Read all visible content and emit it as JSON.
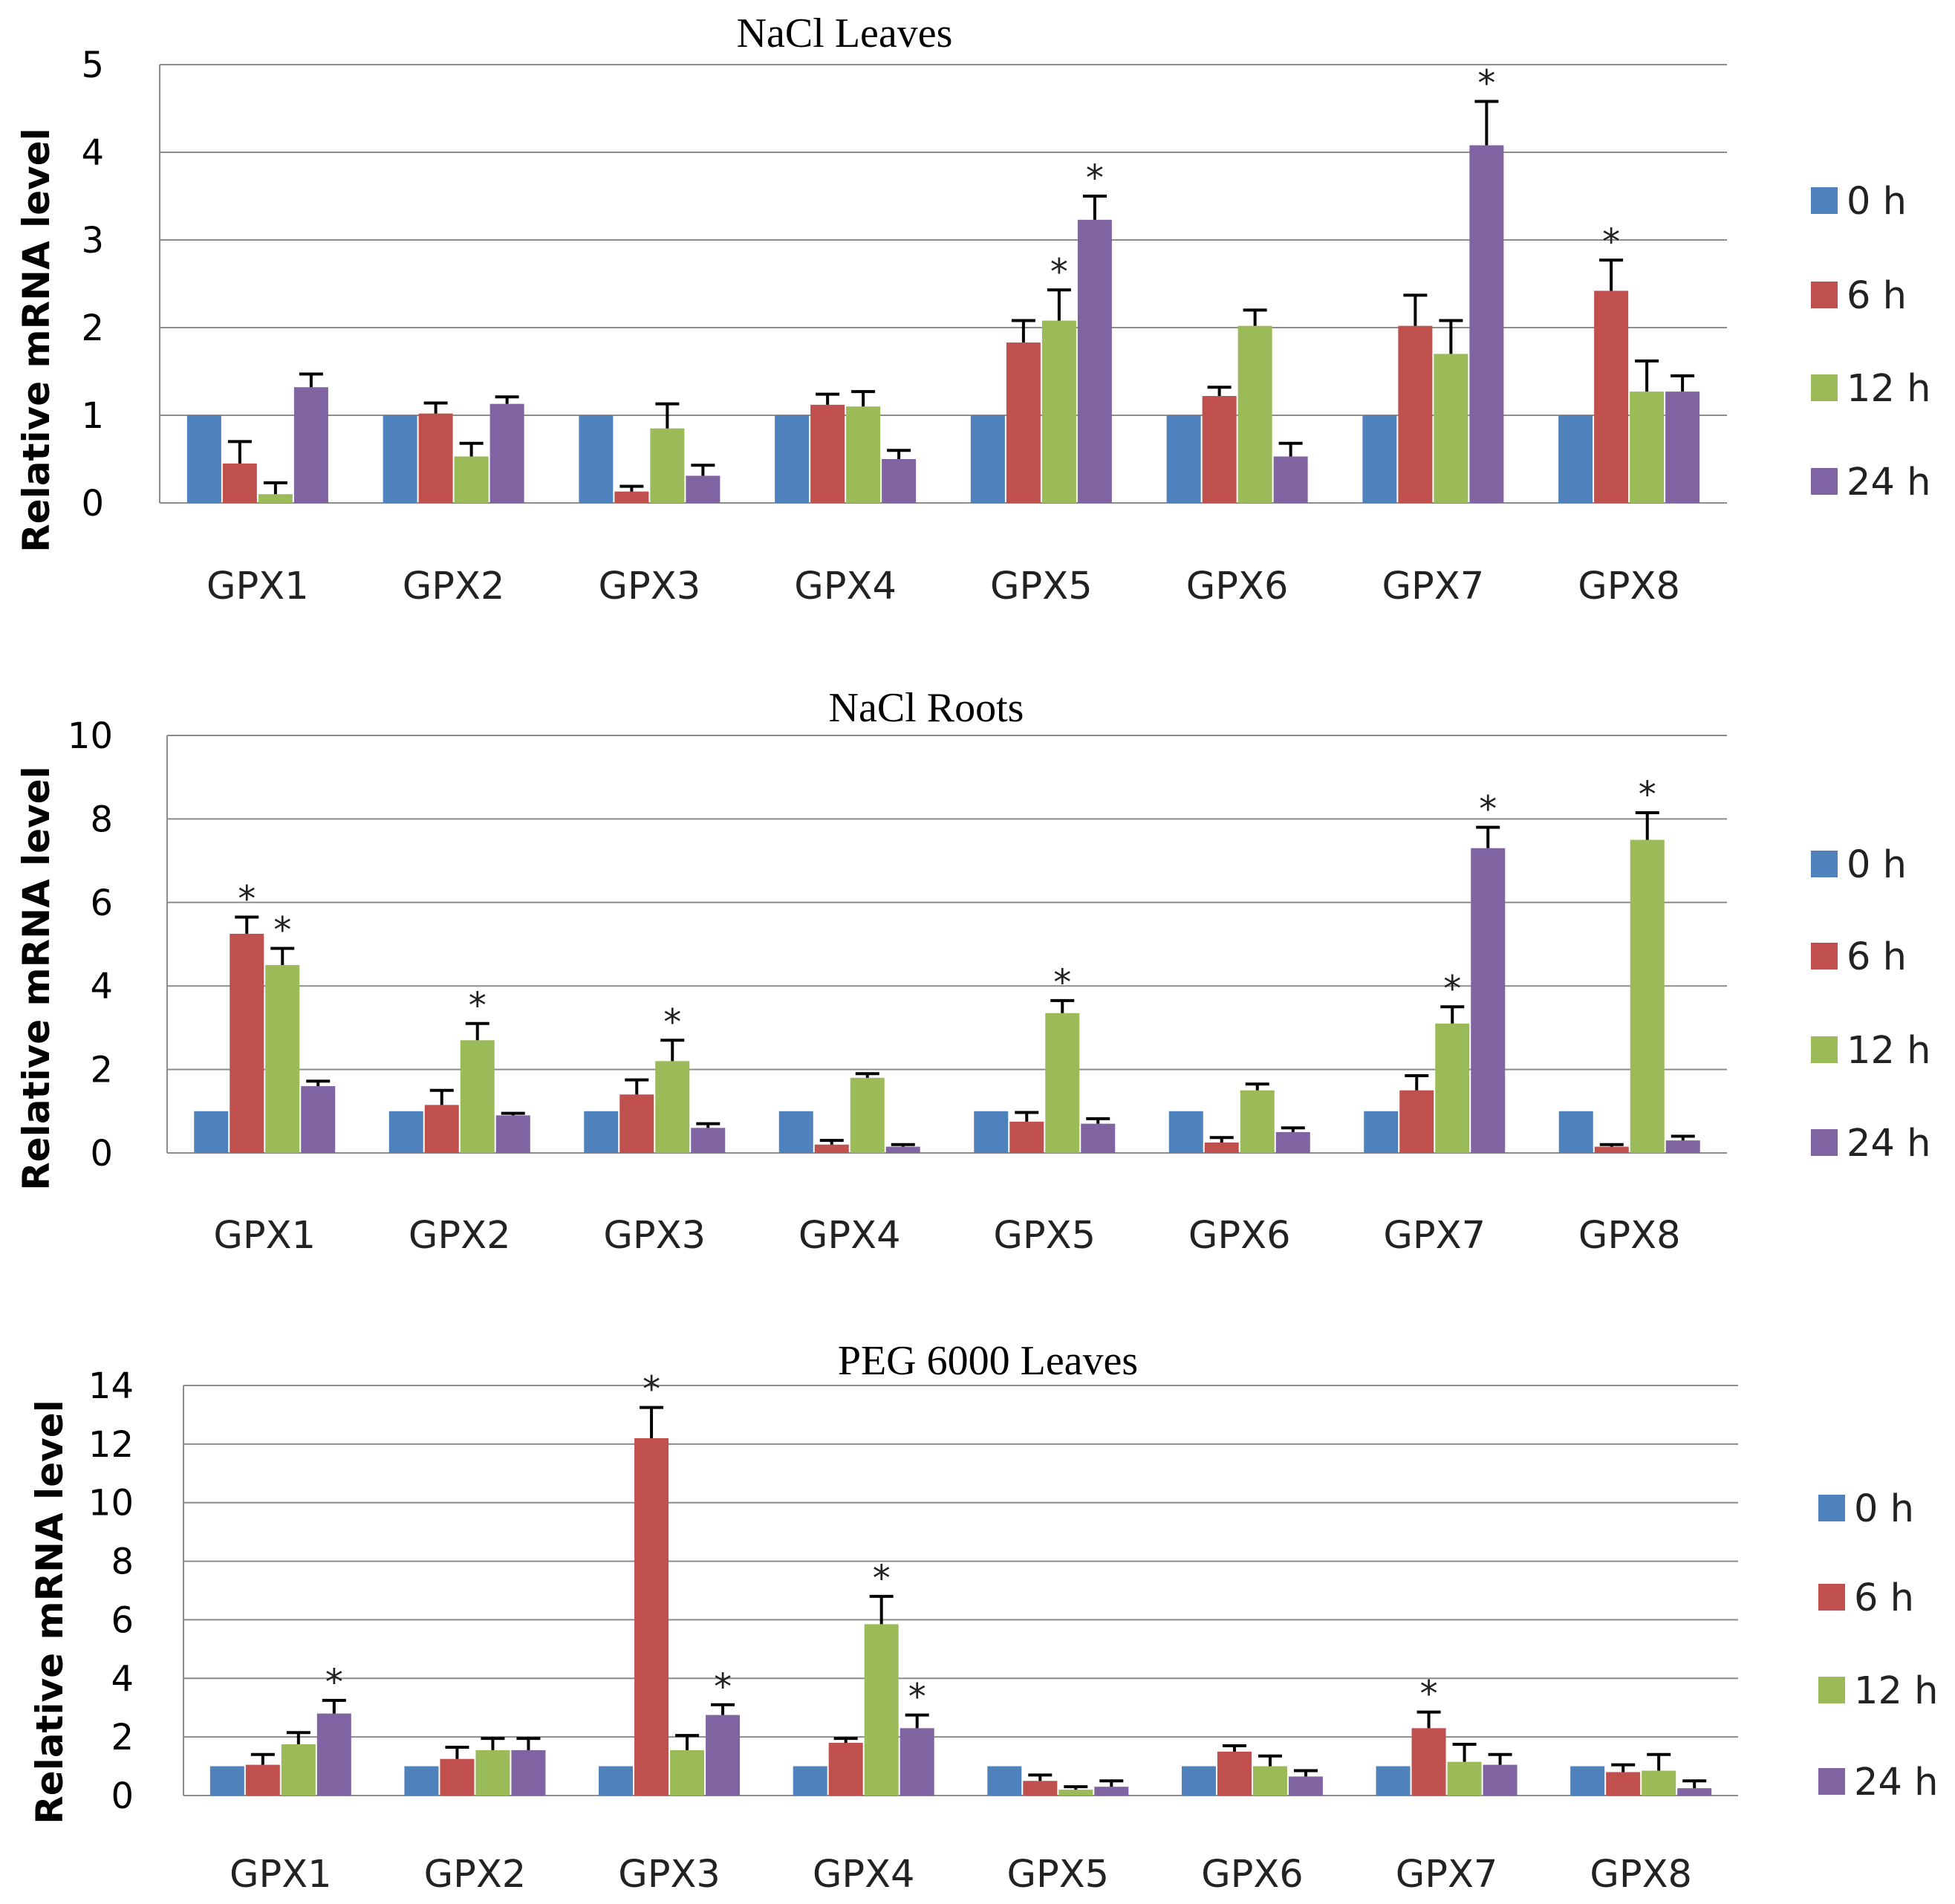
{
  "chart_data": [
    {
      "type": "bar",
      "title": "NaCl Leaves",
      "ylabel": "Relative mRNA level",
      "xlabel": "",
      "ylim": [
        0,
        5
      ],
      "yticks": [
        "0",
        "1",
        "2",
        "3",
        "4",
        "5"
      ],
      "grid": true,
      "legend_position": "right",
      "categories": [
        "GPX1",
        "GPX2",
        "GPX3",
        "GPX4",
        "GPX5",
        "GPX6",
        "GPX7",
        "GPX8"
      ],
      "series": [
        {
          "name": "0 h",
          "color": "#4F81BD",
          "values": [
            1,
            1,
            1,
            1,
            1,
            1,
            1,
            1
          ],
          "errors": [
            0,
            0,
            0,
            0,
            0,
            0,
            0,
            0
          ],
          "significant": [
            false,
            false,
            false,
            false,
            false,
            false,
            false,
            false
          ]
        },
        {
          "name": "6 h",
          "color": "#C0504D",
          "values": [
            0.45,
            1.02,
            0.13,
            1.12,
            1.83,
            1.22,
            2.02,
            2.42
          ],
          "errors": [
            0.25,
            0.12,
            0.06,
            0.12,
            0.25,
            0.1,
            0.35,
            0.35
          ],
          "significant": [
            false,
            false,
            false,
            false,
            false,
            false,
            false,
            true
          ]
        },
        {
          "name": "12 h",
          "color": "#9BBB59",
          "values": [
            0.1,
            0.53,
            0.85,
            1.1,
            2.08,
            2.02,
            1.7,
            1.27
          ],
          "errors": [
            0.13,
            0.15,
            0.28,
            0.17,
            0.35,
            0.18,
            0.38,
            0.35
          ],
          "significant": [
            false,
            false,
            false,
            false,
            true,
            false,
            false,
            false
          ]
        },
        {
          "name": "24 h",
          "color": "#8064A2",
          "values": [
            1.32,
            1.13,
            0.31,
            0.5,
            3.23,
            0.53,
            4.08,
            1.27
          ],
          "errors": [
            0.15,
            0.08,
            0.12,
            0.1,
            0.27,
            0.15,
            0.5,
            0.18
          ],
          "significant": [
            false,
            false,
            false,
            false,
            true,
            false,
            true,
            false
          ]
        }
      ],
      "annotations": [
        "*"
      ]
    },
    {
      "type": "bar",
      "title": "NaCl Roots",
      "ylabel": "Relative mRNA level",
      "xlabel": "",
      "ylim": [
        0,
        10
      ],
      "yticks": [
        "0",
        "2",
        "4",
        "6",
        "8",
        "10"
      ],
      "grid": true,
      "legend_position": "right",
      "categories": [
        "GPX1",
        "GPX2",
        "GPX3",
        "GPX4",
        "GPX5",
        "GPX6",
        "GPX7",
        "GPX8"
      ],
      "series": [
        {
          "name": "0 h",
          "color": "#4F81BD",
          "values": [
            1,
            1,
            1,
            1,
            1,
            1,
            1,
            1
          ],
          "errors": [
            0,
            0,
            0,
            0,
            0,
            0,
            0,
            0
          ],
          "significant": [
            false,
            false,
            false,
            false,
            false,
            false,
            false,
            false
          ]
        },
        {
          "name": "6 h",
          "color": "#C0504D",
          "values": [
            5.25,
            1.15,
            1.4,
            0.2,
            0.75,
            0.25,
            1.5,
            0.15
          ],
          "errors": [
            0.4,
            0.35,
            0.35,
            0.1,
            0.22,
            0.12,
            0.35,
            0.05
          ],
          "significant": [
            true,
            false,
            false,
            false,
            false,
            false,
            false,
            false
          ]
        },
        {
          "name": "12 h",
          "color": "#9BBB59",
          "values": [
            4.5,
            2.7,
            2.2,
            1.8,
            3.35,
            1.5,
            3.1,
            7.5
          ],
          "errors": [
            0.4,
            0.4,
            0.5,
            0.1,
            0.3,
            0.15,
            0.4,
            0.65
          ],
          "significant": [
            true,
            true,
            true,
            false,
            true,
            false,
            true,
            true
          ]
        },
        {
          "name": "24 h",
          "color": "#8064A2",
          "values": [
            1.6,
            0.9,
            0.6,
            0.15,
            0.7,
            0.5,
            7.3,
            0.3
          ],
          "errors": [
            0.12,
            0.05,
            0.1,
            0.05,
            0.12,
            0.1,
            0.5,
            0.1
          ],
          "significant": [
            false,
            false,
            false,
            false,
            false,
            false,
            true,
            false
          ]
        }
      ],
      "annotations": [
        "*"
      ]
    },
    {
      "type": "bar",
      "title": "PEG 6000 Leaves",
      "ylabel": "Relative mRNA level",
      "xlabel": "",
      "ylim": [
        0,
        14
      ],
      "yticks": [
        "0",
        "2",
        "4",
        "6",
        "8",
        "10",
        "12",
        "14"
      ],
      "grid": true,
      "legend_position": "right",
      "categories": [
        "GPX1",
        "GPX2",
        "GPX3",
        "GPX4",
        "GPX5",
        "GPX6",
        "GPX7",
        "GPX8"
      ],
      "series": [
        {
          "name": "0 h",
          "color": "#4F81BD",
          "values": [
            1,
            1,
            1,
            1,
            1,
            1,
            1,
            1
          ],
          "errors": [
            0,
            0,
            0,
            0,
            0,
            0,
            0,
            0
          ],
          "significant": [
            false,
            false,
            false,
            false,
            false,
            false,
            false,
            false
          ]
        },
        {
          "name": "6 h",
          "color": "#C0504D",
          "values": [
            1.05,
            1.25,
            12.2,
            1.8,
            0.5,
            1.5,
            2.3,
            0.8
          ],
          "errors": [
            0.35,
            0.4,
            1.05,
            0.15,
            0.2,
            0.2,
            0.55,
            0.25
          ],
          "significant": [
            false,
            false,
            true,
            false,
            false,
            false,
            true,
            false
          ]
        },
        {
          "name": "12 h",
          "color": "#9BBB59",
          "values": [
            1.75,
            1.55,
            1.55,
            5.85,
            0.2,
            1.0,
            1.15,
            0.85
          ],
          "errors": [
            0.4,
            0.4,
            0.5,
            0.95,
            0.1,
            0.35,
            0.6,
            0.55
          ],
          "significant": [
            false,
            false,
            false,
            true,
            false,
            false,
            false,
            false
          ]
        },
        {
          "name": "24 h",
          "color": "#8064A2",
          "values": [
            2.8,
            1.55,
            2.75,
            2.3,
            0.3,
            0.65,
            1.05,
            0.25
          ],
          "errors": [
            0.45,
            0.4,
            0.35,
            0.45,
            0.2,
            0.2,
            0.35,
            0.25
          ],
          "significant": [
            true,
            false,
            true,
            true,
            false,
            false,
            false,
            false
          ]
        }
      ],
      "annotations": [
        "*"
      ]
    }
  ]
}
